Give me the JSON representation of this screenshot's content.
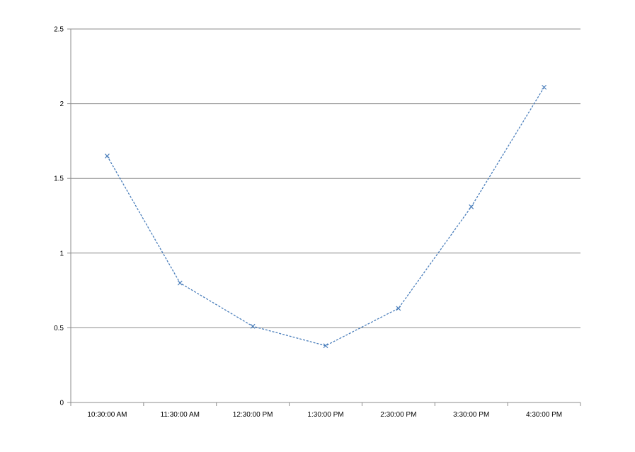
{
  "chart_data": {
    "type": "line",
    "title": "",
    "xlabel": "",
    "ylabel": "",
    "categories": [
      "10:30:00 AM",
      "11:30:00 AM",
      "12:30:00 PM",
      "1:30:00 PM",
      "2:30:00 PM",
      "3:30:00 PM",
      "4:30:00 PM"
    ],
    "y_ticks": [
      "0",
      "0.5",
      "1",
      "1.5",
      "2",
      "2.5"
    ],
    "ylim": [
      0,
      2.5
    ],
    "grid": "horizontal",
    "legend": "none",
    "series": [
      {
        "values": [
          1.65,
          0.8,
          0.51,
          0.38,
          0.63,
          1.31,
          2.11
        ],
        "color": "#4a7ebb",
        "line_style": "dashed",
        "marker": "x"
      }
    ]
  }
}
